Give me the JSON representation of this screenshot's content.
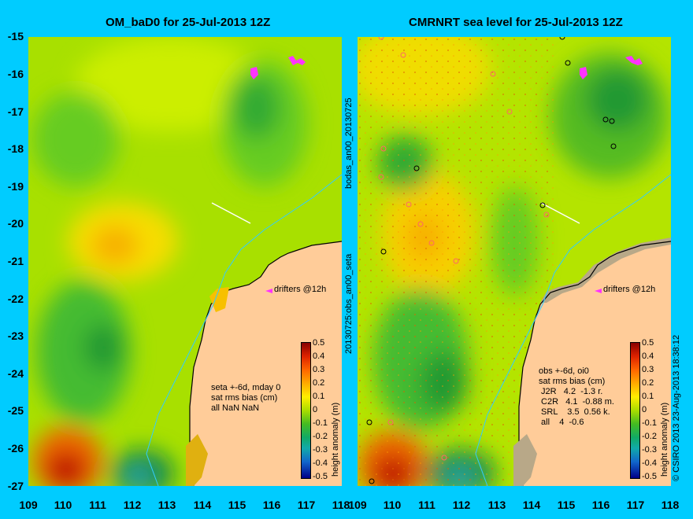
{
  "left_panel": {
    "title": "OM_baD0 for 25-Jul-2013 12Z",
    "stats": "seta +-6d, mday 0\nsat rms bias (cm)\nall NaN NaN",
    "drifters_label": "drifters @12h"
  },
  "right_panel": {
    "title": "CMRNRT sea level  for 25-Jul-2013 12Z",
    "stats": "obs +-6d, oi0\nsat rms bias (cm)\n J2R   4.2  -1.3 r.\n C2R   4.1  -0.88 m.\n SRL    3.5  0.56 k.\n all    4  -0.6",
    "drifters_label": "drifters @12h"
  },
  "center_vertical_label_top": "bodas_an00_20130725",
  "center_vertical_label_bottom": "20130725:obs_an00_seta",
  "copyright": "© CSIRO 2013   23-Aug-2013 18:38:12",
  "colorbar": {
    "label": "height anomaly (m)",
    "ticks": [
      "0.5",
      "0.4",
      "0.3",
      "0.2",
      "0.1",
      "0",
      "-0.1",
      "-0.2",
      "-0.3",
      "-0.4",
      "-0.5"
    ]
  },
  "axes": {
    "y_ticks": [
      "-15",
      "-16",
      "-17",
      "-18",
      "-19",
      "-20",
      "-21",
      "-22",
      "-23",
      "-24",
      "-25",
      "-26",
      "-27"
    ],
    "x_ticks": [
      "109",
      "110",
      "111",
      "112",
      "113",
      "114",
      "115",
      "116",
      "117",
      "118"
    ]
  },
  "colors": {
    "background": "#00ccff",
    "land": "#ffcc99",
    "coastline": "#33ccff",
    "drifter": "#ff33ff"
  }
}
